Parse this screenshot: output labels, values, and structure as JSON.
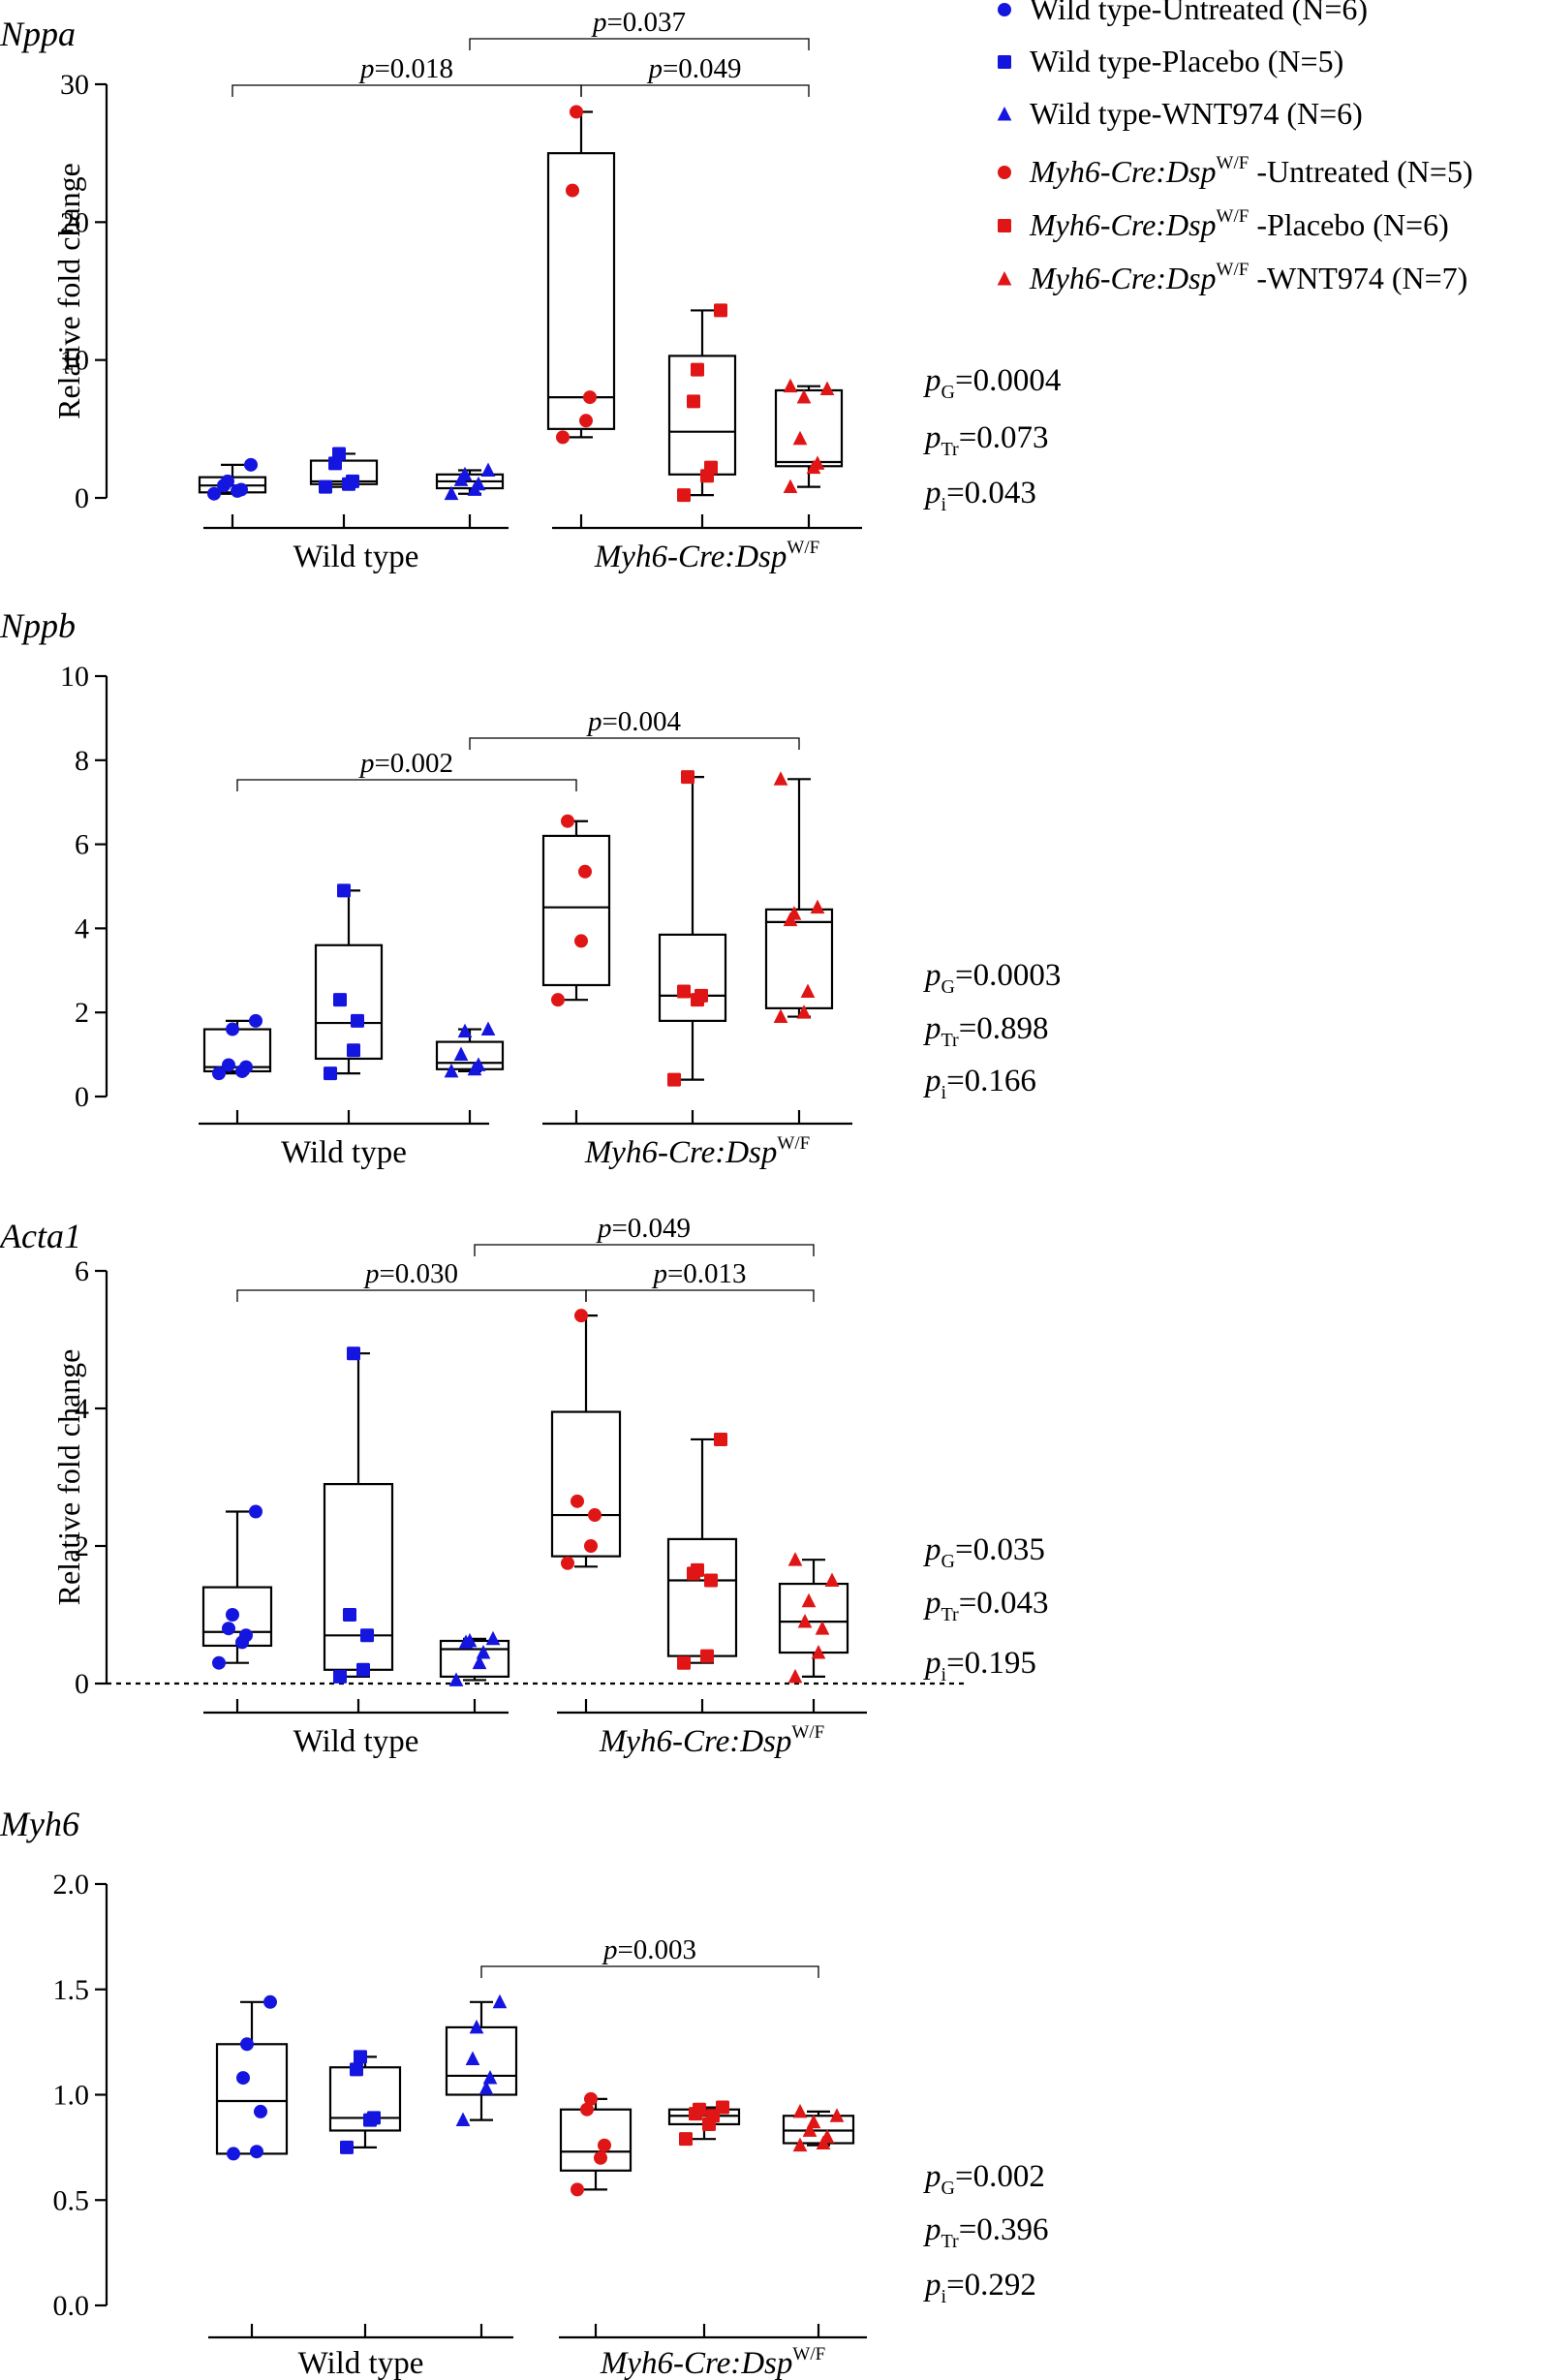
{
  "chart_data": [
    {
      "type": "box",
      "title": "Nppa",
      "ylabel": "Relative fold change",
      "ylim": [
        0,
        30
      ],
      "yticks": [
        "0",
        "10",
        "20",
        "30"
      ],
      "group_labels": [
        "Wild type",
        "Myh6-Cre:Dsp"
      ],
      "group_label_sup": "W/F",
      "series": [
        {
          "group": "Wild type",
          "treatment": "Untreated",
          "color": "#1515e0",
          "marker": "circle",
          "box": {
            "min": 0.3,
            "q1": 0.4,
            "median": 0.9,
            "q3": 1.5,
            "max": 2.4
          },
          "points": [
            0.3,
            0.5,
            0.6,
            0.9,
            1.2,
            2.4
          ]
        },
        {
          "group": "Wild type",
          "treatment": "Placebo",
          "color": "#1515e0",
          "marker": "square",
          "box": {
            "min": 0.8,
            "q1": 1.0,
            "median": 1.2,
            "q3": 2.7,
            "max": 3.2
          },
          "points": [
            0.8,
            1.0,
            1.2,
            2.5,
            3.2
          ]
        },
        {
          "group": "Wild type",
          "treatment": "WNT974",
          "color": "#1515e0",
          "marker": "triangle",
          "box": {
            "min": 0.3,
            "q1": 0.7,
            "median": 1.2,
            "q3": 1.7,
            "max": 2.0
          },
          "points": [
            0.3,
            0.6,
            1.0,
            1.3,
            1.7,
            2.0
          ]
        },
        {
          "group": "Myh6-Cre:Dsp",
          "treatment": "Untreated",
          "color": "#e01515",
          "marker": "circle",
          "box": {
            "min": 4.4,
            "q1": 5.0,
            "median": 7.3,
            "q3": 25.0,
            "max": 28.0
          },
          "points": [
            4.4,
            5.6,
            7.3,
            22.3,
            28.0
          ]
        },
        {
          "group": "Myh6-Cre:Dsp",
          "treatment": "Placebo",
          "color": "#e01515",
          "marker": "square",
          "box": {
            "min": 0.2,
            "q1": 1.7,
            "median": 4.8,
            "q3": 10.3,
            "max": 13.6
          },
          "points": [
            0.2,
            1.6,
            2.2,
            7.0,
            9.3,
            13.6
          ]
        },
        {
          "group": "Myh6-Cre:Dsp",
          "treatment": "WNT974",
          "color": "#e01515",
          "marker": "triangle",
          "box": {
            "min": 0.8,
            "q1": 2.3,
            "median": 2.6,
            "q3": 7.8,
            "max": 8.1
          },
          "points": [
            0.8,
            2.2,
            2.5,
            4.3,
            7.3,
            7.9,
            8.1
          ]
        }
      ],
      "brackets": [
        {
          "label": "p=0.018",
          "from": 0,
          "to": 3
        },
        {
          "label": "p=0.037",
          "from": 2,
          "to": 5
        },
        {
          "label": "p=0.049",
          "from": 3,
          "to": 5
        }
      ],
      "stats": [
        {
          "p": "p",
          "sub": "G",
          "value": "=0.0004"
        },
        {
          "p": "p",
          "sub": "Tr",
          "value": "=0.073"
        },
        {
          "p": "p",
          "sub": "i",
          "value": "=0.043"
        }
      ]
    },
    {
      "type": "box",
      "title": "Nppb",
      "ylabel": "",
      "ylim": [
        0,
        10
      ],
      "yticks": [
        "0",
        "2",
        "4",
        "6",
        "8",
        "10"
      ],
      "group_labels": [
        "Wild type",
        "Myh6-Cre:Dsp"
      ],
      "group_label_sup": "W/F",
      "series": [
        {
          "group": "Wild type",
          "treatment": "Untreated",
          "color": "#1515e0",
          "marker": "circle",
          "box": {
            "min": 0.55,
            "q1": 0.6,
            "median": 0.7,
            "q3": 1.6,
            "max": 1.8
          },
          "points": [
            0.55,
            0.6,
            0.7,
            0.75,
            1.6,
            1.8
          ]
        },
        {
          "group": "Wild type",
          "treatment": "Placebo",
          "color": "#1515e0",
          "marker": "square",
          "box": {
            "min": 0.55,
            "q1": 0.9,
            "median": 1.75,
            "q3": 3.6,
            "max": 4.9
          },
          "points": [
            0.55,
            1.1,
            1.8,
            2.3,
            4.9
          ]
        },
        {
          "group": "Wild type",
          "treatment": "WNT974",
          "color": "#1515e0",
          "marker": "triangle",
          "box": {
            "min": 0.6,
            "q1": 0.65,
            "median": 0.8,
            "q3": 1.3,
            "max": 1.6
          },
          "points": [
            0.6,
            0.65,
            0.75,
            1.0,
            1.55,
            1.6
          ]
        },
        {
          "group": "Myh6-Cre:Dsp",
          "treatment": "Untreated",
          "color": "#e01515",
          "marker": "circle",
          "box": {
            "min": 2.3,
            "q1": 2.65,
            "median": 4.5,
            "q3": 6.2,
            "max": 6.55
          },
          "points": [
            2.3,
            3.7,
            5.35,
            6.55
          ]
        },
        {
          "group": "Myh6-Cre:Dsp",
          "treatment": "Placebo",
          "color": "#e01515",
          "marker": "square",
          "box": {
            "min": 0.4,
            "q1": 1.8,
            "median": 2.4,
            "q3": 3.85,
            "max": 7.6
          },
          "points": [
            0.4,
            2.3,
            2.4,
            2.5,
            7.6
          ]
        },
        {
          "group": "Myh6-Cre:Dsp",
          "treatment": "WNT974",
          "color": "#e01515",
          "marker": "triangle",
          "box": {
            "min": 1.9,
            "q1": 2.1,
            "median": 4.15,
            "q3": 4.45,
            "max": 7.55
          },
          "points": [
            1.9,
            2.0,
            2.5,
            4.2,
            4.35,
            4.5,
            7.55
          ]
        }
      ],
      "brackets": [
        {
          "label": "p=0.002",
          "from": 0,
          "to": 3
        },
        {
          "label": "p=0.004",
          "from": 2,
          "to": 5
        }
      ],
      "stats": [
        {
          "p": "p",
          "sub": "G",
          "value": "=0.0003"
        },
        {
          "p": "p",
          "sub": "Tr",
          "value": "=0.898"
        },
        {
          "p": "p",
          "sub": "i",
          "value": "=0.166"
        }
      ]
    },
    {
      "type": "box",
      "title": "Acta1",
      "ylabel": "Relative fold change",
      "ylim": [
        0,
        6
      ],
      "yticks": [
        "0",
        "2",
        "4",
        "6"
      ],
      "zero_dashed": true,
      "group_labels": [
        "Wild type",
        "Myh6-Cre:Dsp"
      ],
      "group_label_sup": "W/F",
      "series": [
        {
          "group": "Wild type",
          "treatment": "Untreated",
          "color": "#1515e0",
          "marker": "circle",
          "box": {
            "min": 0.3,
            "q1": 0.55,
            "median": 0.75,
            "q3": 1.4,
            "max": 2.5
          },
          "points": [
            0.3,
            0.6,
            0.7,
            0.8,
            1.0,
            2.5
          ]
        },
        {
          "group": "Wild type",
          "treatment": "Placebo",
          "color": "#1515e0",
          "marker": "square",
          "box": {
            "min": 0.1,
            "q1": 0.2,
            "median": 0.7,
            "q3": 2.9,
            "max": 4.8
          },
          "points": [
            0.1,
            0.2,
            0.7,
            1.0,
            4.8
          ]
        },
        {
          "group": "Wild type",
          "treatment": "WNT974",
          "color": "#1515e0",
          "marker": "triangle",
          "box": {
            "min": 0.05,
            "q1": 0.1,
            "median": 0.5,
            "q3": 0.62,
            "max": 0.65
          },
          "points": [
            0.05,
            0.3,
            0.45,
            0.6,
            0.62,
            0.65
          ]
        },
        {
          "group": "Myh6-Cre:Dsp",
          "treatment": "Untreated",
          "color": "#e01515",
          "marker": "circle",
          "box": {
            "min": 1.7,
            "q1": 1.85,
            "median": 2.45,
            "q3": 3.95,
            "max": 5.35
          },
          "points": [
            1.75,
            2.0,
            2.45,
            2.65,
            5.35
          ]
        },
        {
          "group": "Myh6-Cre:Dsp",
          "treatment": "Placebo",
          "color": "#e01515",
          "marker": "square",
          "box": {
            "min": 0.3,
            "q1": 0.4,
            "median": 1.5,
            "q3": 2.1,
            "max": 3.55
          },
          "points": [
            0.3,
            0.4,
            1.5,
            1.6,
            1.65,
            3.55
          ]
        },
        {
          "group": "Myh6-Cre:Dsp",
          "treatment": "WNT974",
          "color": "#e01515",
          "marker": "triangle",
          "box": {
            "min": 0.1,
            "q1": 0.45,
            "median": 0.9,
            "q3": 1.45,
            "max": 1.8
          },
          "points": [
            0.1,
            0.45,
            0.8,
            0.9,
            1.2,
            1.5,
            1.8
          ]
        }
      ],
      "brackets": [
        {
          "label": "p=0.030",
          "from": 0,
          "to": 3
        },
        {
          "label": "p=0.049",
          "from": 2,
          "to": 5
        },
        {
          "label": "p=0.013",
          "from": 3,
          "to": 5
        }
      ],
      "stats": [
        {
          "p": "p",
          "sub": "G",
          "value": "=0.035"
        },
        {
          "p": "p",
          "sub": "Tr",
          "value": "=0.043"
        },
        {
          "p": "p",
          "sub": "i",
          "value": "=0.195"
        }
      ]
    },
    {
      "type": "box",
      "title": "Myh6",
      "ylabel": "",
      "ylim": [
        0,
        2.0
      ],
      "yticks": [
        "0.0",
        "0.5",
        "1.0",
        "1.5",
        "2.0"
      ],
      "group_labels": [
        "Wild type",
        "Myh6-Cre:Dsp"
      ],
      "group_label_sup": "W/F",
      "series": [
        {
          "group": "Wild type",
          "treatment": "Untreated",
          "color": "#1515e0",
          "marker": "circle",
          "box": {
            "min": 0.72,
            "q1": 0.72,
            "median": 0.97,
            "q3": 1.24,
            "max": 1.44
          },
          "points": [
            0.72,
            0.73,
            0.92,
            1.08,
            1.24,
            1.44
          ]
        },
        {
          "group": "Wild type",
          "treatment": "Placebo",
          "color": "#1515e0",
          "marker": "square",
          "box": {
            "min": 0.75,
            "q1": 0.83,
            "median": 0.89,
            "q3": 1.13,
            "max": 1.18
          },
          "points": [
            0.75,
            0.88,
            0.89,
            1.12,
            1.18
          ]
        },
        {
          "group": "Wild type",
          "treatment": "WNT974",
          "color": "#1515e0",
          "marker": "triangle",
          "box": {
            "min": 0.88,
            "q1": 1.0,
            "median": 1.09,
            "q3": 1.32,
            "max": 1.44
          },
          "points": [
            0.88,
            1.03,
            1.08,
            1.17,
            1.32,
            1.44
          ]
        },
        {
          "group": "Myh6-Cre:Dsp",
          "treatment": "Untreated",
          "color": "#e01515",
          "marker": "circle",
          "box": {
            "min": 0.55,
            "q1": 0.64,
            "median": 0.73,
            "q3": 0.93,
            "max": 0.98
          },
          "points": [
            0.55,
            0.7,
            0.76,
            0.93,
            0.98
          ]
        },
        {
          "group": "Myh6-Cre:Dsp",
          "treatment": "Placebo",
          "color": "#e01515",
          "marker": "square",
          "box": {
            "min": 0.79,
            "q1": 0.86,
            "median": 0.9,
            "q3": 0.93,
            "max": 0.94
          },
          "points": [
            0.79,
            0.86,
            0.9,
            0.91,
            0.93,
            0.94
          ]
        },
        {
          "group": "Myh6-Cre:Dsp",
          "treatment": "WNT974",
          "color": "#e01515",
          "marker": "triangle",
          "box": {
            "min": 0.76,
            "q1": 0.77,
            "median": 0.83,
            "q3": 0.9,
            "max": 0.92
          },
          "points": [
            0.76,
            0.77,
            0.8,
            0.83,
            0.87,
            0.9,
            0.92
          ]
        }
      ],
      "brackets": [
        {
          "label": "p=0.003",
          "from": 2,
          "to": 5
        }
      ],
      "stats": [
        {
          "p": "p",
          "sub": "G",
          "value": "=0.002"
        },
        {
          "p": "p",
          "sub": "Tr",
          "value": "=0.396"
        },
        {
          "p": "p",
          "sub": "i",
          "value": "=0.292"
        }
      ]
    }
  ],
  "legend": [
    {
      "prefix": "Wild type-",
      "italic_prefix": "",
      "sup": "",
      "suffix": "Untreated (N=6)",
      "color": "#1515e0",
      "marker": "circle"
    },
    {
      "prefix": "Wild type-",
      "italic_prefix": "",
      "sup": "",
      "suffix": "Placebo (N=5)",
      "color": "#1515e0",
      "marker": "square"
    },
    {
      "prefix": "Wild type-",
      "italic_prefix": "",
      "sup": "",
      "suffix": "WNT974 (N=6)",
      "color": "#1515e0",
      "marker": "triangle"
    },
    {
      "prefix": "",
      "italic_prefix": "Myh6-Cre:Dsp",
      "sup": "W/F",
      "suffix": "-Untreated (N=5)",
      "color": "#e01515",
      "marker": "circle"
    },
    {
      "prefix": "",
      "italic_prefix": "Myh6-Cre:Dsp",
      "sup": "W/F",
      "suffix": "-Placebo (N=6)",
      "color": "#e01515",
      "marker": "square"
    },
    {
      "prefix": "",
      "italic_prefix": "Myh6-Cre:Dsp",
      "sup": "W/F",
      "suffix": "-WNT974 (N=7)",
      "color": "#e01515",
      "marker": "triangle"
    }
  ]
}
